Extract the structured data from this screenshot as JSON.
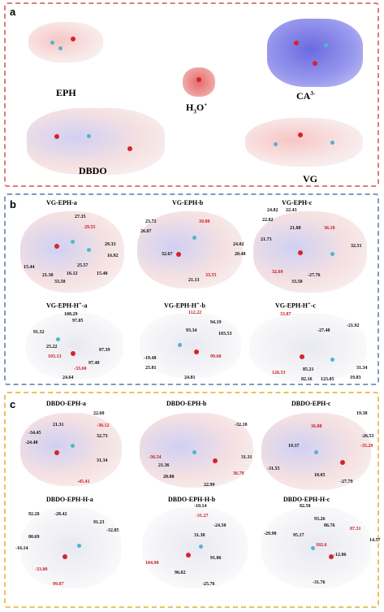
{
  "panel_a": {
    "label": "a",
    "molecules": [
      "EPH",
      "H3O+",
      "CA3-",
      "DBDO",
      "VG"
    ]
  },
  "panel_b": {
    "label": "b",
    "titles": [
      "VG-EPH-a",
      "VG-EPH-b",
      "VG-EPH-c",
      "VG-EPH-H+-a",
      "VG-EPH-H+-b",
      "VG-EPH-H+-c"
    ]
  },
  "panel_c": {
    "label": "c",
    "titles": [
      "DBDO-EPH-a",
      "DBDO-EPH-b",
      "DBDO-EPH-c",
      "DBDO-EPH-H-a",
      "DBDO-EPH-H-b",
      "DBDO-EPH-H-c"
    ]
  },
  "values": {
    "b1": [
      "27.35",
      "29.55",
      "29.33",
      "16.92",
      "15.44",
      "21.30",
      "16.12",
      "25.57",
      "15.40",
      "33.50"
    ],
    "b2": [
      "23.72",
      "39.80",
      "26.07",
      "24.02",
      "20.48",
      "32.67",
      "21.13",
      "33.55"
    ],
    "b3": [
      "24.82",
      "22.43",
      "22.82",
      "21.88",
      "36.18",
      "21.73",
      "32.51",
      "32.69",
      "33.50",
      "-27.76"
    ],
    "b4": [
      "108.29",
      "97.05",
      "91.32",
      "25.22",
      "103.13",
      "87.39",
      "97.40",
      "-33.60",
      "24.64"
    ],
    "b5": [
      "112.22",
      "94.19",
      "93.34",
      "103.53",
      "-19.48",
      "25.81",
      "99.68",
      "24.81"
    ],
    "b6": [
      "33.87",
      "-27.48",
      "-21.92",
      "126.53",
      "85.21",
      "31.34",
      "82.16",
      "123.05",
      "19.83"
    ],
    "c1": [
      "22.60",
      "21.31",
      "-30.12",
      "-34.45",
      "-24.48",
      "32.73",
      "31.34",
      "-45.41"
    ],
    "c2": [
      "-32.10",
      "-36.54",
      "21.36",
      "31.31",
      "20.88",
      "22.99",
      "36.79"
    ],
    "c3": [
      "19.38",
      "36.88",
      "-26.53",
      "19.37",
      "-35.29",
      "-31.55",
      "18.05",
      "-27.79"
    ],
    "c4": [
      "92.20",
      "-28.42",
      "91.23",
      "80.69",
      "-32.85",
      "-16.14",
      "-33.00",
      "99.07"
    ],
    "c5": [
      "-10.14",
      "-31.27",
      "-24.50",
      "31.30",
      "104.98",
      "91.06",
      "96.02",
      "-25.76"
    ],
    "c6": [
      "82.58",
      "93.26",
      "86.76",
      "-29.90",
      "95.17",
      "87.31",
      "14.57",
      "102.6",
      "-12.06",
      "-31.76"
    ]
  }
}
